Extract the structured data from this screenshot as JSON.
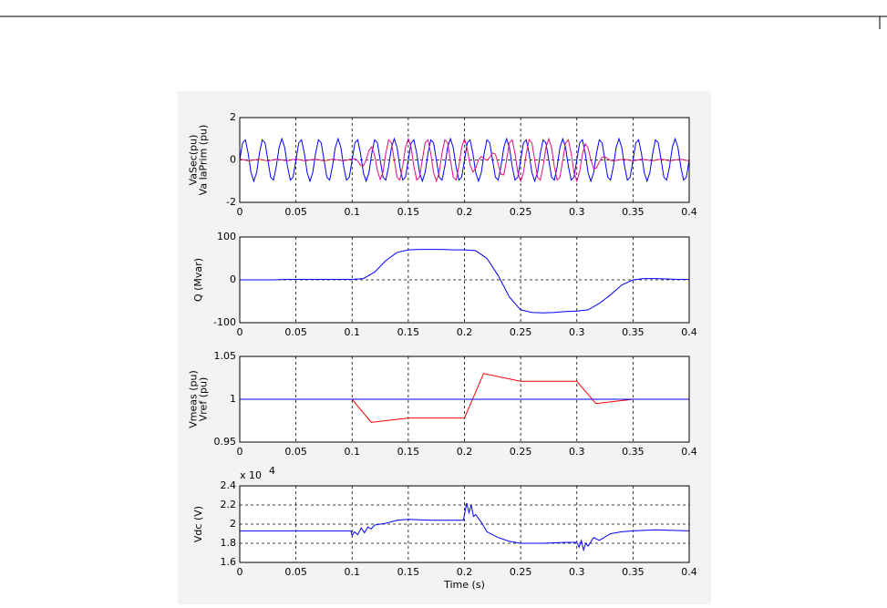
{
  "chart_data": [
    {
      "type": "line",
      "ylabel": [
        "VaSec(pu)",
        "Va IaPrim (pu)"
      ],
      "grid": true,
      "xlim": [
        0,
        0.4
      ],
      "ylim": [
        -2,
        2
      ],
      "xticks": [
        0,
        0.05,
        0.1,
        0.15,
        0.2,
        0.25,
        0.3,
        0.35,
        0.4
      ],
      "yticks": [
        -2,
        0,
        2
      ],
      "x": [
        0,
        0.0025,
        0.005,
        0.0075,
        0.01,
        0.0125,
        0.015,
        0.0175,
        0.02,
        0.0225,
        0.025,
        0.0275,
        0.03,
        0.0325,
        0.035,
        0.0375,
        0.04,
        0.0425,
        0.045,
        0.0475,
        0.05,
        0.0525,
        0.055,
        0.0575,
        0.06,
        0.0625,
        0.065,
        0.0675,
        0.07,
        0.0725,
        0.075,
        0.0775,
        0.08,
        0.0825,
        0.085,
        0.0875,
        0.09,
        0.0925,
        0.095,
        0.0975,
        0.1,
        0.1025,
        0.105,
        0.1075,
        0.11,
        0.1125,
        0.115,
        0.1175,
        0.12,
        0.1225,
        0.125,
        0.1275,
        0.13,
        0.1325,
        0.135,
        0.1375,
        0.14,
        0.1425,
        0.145,
        0.1475,
        0.15,
        0.1525,
        0.155,
        0.1575,
        0.16,
        0.1625,
        0.165,
        0.1675,
        0.17,
        0.1725,
        0.175,
        0.1775,
        0.18,
        0.1825,
        0.185,
        0.1875,
        0.19,
        0.1925,
        0.195,
        0.1975,
        0.2,
        0.2025,
        0.205,
        0.2075,
        0.21,
        0.2125,
        0.215,
        0.2175,
        0.22,
        0.2225,
        0.225,
        0.2275,
        0.23,
        0.2325,
        0.235,
        0.2375,
        0.24,
        0.2425,
        0.245,
        0.2475,
        0.25,
        0.2525,
        0.255,
        0.2575,
        0.26,
        0.2625,
        0.265,
        0.2675,
        0.27,
        0.2725,
        0.275,
        0.2775,
        0.28,
        0.2825,
        0.285,
        0.2875,
        0.29,
        0.2925,
        0.295,
        0.2975,
        0.3,
        0.3025,
        0.305,
        0.3075,
        0.31,
        0.3125,
        0.315,
        0.3175,
        0.32,
        0.3225,
        0.325,
        0.3275,
        0.33,
        0.3325,
        0.335,
        0.3375,
        0.34,
        0.3425,
        0.345,
        0.3475,
        0.35,
        0.3525,
        0.355,
        0.3575,
        0.36,
        0.3625,
        0.365,
        0.3675,
        0.37,
        0.3725,
        0.375,
        0.3775,
        0.38,
        0.3825,
        0.385,
        0.3875,
        0.39,
        0.3925,
        0.395,
        0.3975,
        0.4
      ],
      "series": [
        {
          "color": "#0000ff",
          "values": [
            0,
            0.81,
            0.95,
            0.31,
            -0.59,
            -1,
            -0.59,
            0.31,
            0.95,
            0.81,
            0,
            -0.81,
            -0.95,
            -0.31,
            0.59,
            1,
            0.59,
            -0.31,
            -0.95,
            -0.81,
            0,
            0.81,
            0.95,
            0.31,
            -0.59,
            -1,
            -0.59,
            0.31,
            0.95,
            0.81,
            0,
            -0.81,
            -0.95,
            -0.31,
            0.59,
            1,
            0.59,
            -0.31,
            -0.95,
            -0.81,
            0,
            0.81,
            0.95,
            0.31,
            -0.59,
            -1,
            -0.59,
            0.31,
            0.95,
            0.81,
            0,
            -0.81,
            -0.95,
            -0.31,
            0.59,
            1,
            0.59,
            -0.31,
            -0.95,
            -0.81,
            0,
            0.81,
            0.95,
            0.31,
            -0.59,
            -1,
            -0.59,
            0.31,
            0.95,
            0.81,
            0,
            -0.81,
            -0.95,
            -0.31,
            0.59,
            1,
            0.59,
            -0.31,
            -0.95,
            -0.81,
            0,
            0.81,
            0.95,
            0.31,
            -0.59,
            -1,
            -0.59,
            0.31,
            0.95,
            0.81,
            0,
            -0.81,
            -0.95,
            -0.31,
            0.59,
            1,
            0.59,
            -0.31,
            -0.95,
            -0.81,
            0,
            0.81,
            0.95,
            0.31,
            -0.59,
            -1,
            -0.59,
            0.31,
            0.95,
            0.81,
            0,
            -0.81,
            -0.95,
            -0.31,
            0.59,
            1,
            0.59,
            -0.31,
            -0.95,
            -0.81,
            0,
            0.81,
            0.95,
            0.31,
            -0.59,
            -1,
            -0.59,
            0.31,
            0.95,
            0.81,
            0,
            -0.81,
            -0.95,
            -0.31,
            0.59,
            1,
            0.59,
            -0.31,
            -0.95,
            -0.81,
            0,
            0.81,
            0.95,
            0.31,
            -0.59,
            -1,
            -0.59,
            0.31,
            0.95,
            0.81,
            0,
            -0.81,
            -0.95,
            -0.31,
            0.59,
            1,
            0.59,
            -0.31,
            -0.95,
            -0.81,
            0
          ]
        },
        {
          "color": "#e0107a",
          "values": [
            0.03,
            0.02,
            -0.01,
            -0.03,
            -0.02,
            0,
            0.02,
            0.03,
            0.01,
            -0.02,
            -0.03,
            -0.02,
            0.01,
            0.03,
            0.02,
            0,
            -0.02,
            -0.03,
            -0.01,
            0.02,
            0.03,
            0.02,
            -0.01,
            -0.03,
            -0.02,
            0,
            0.02,
            0.03,
            0.01,
            -0.02,
            -0.03,
            -0.02,
            0.01,
            0.03,
            0.02,
            0,
            -0.02,
            -0.03,
            -0.01,
            0.02,
            0.05,
            0.06,
            -0.05,
            -0.24,
            -0.28,
            0,
            0.45,
            0.62,
            0.23,
            -0.5,
            -0.92,
            -0.57,
            0.31,
            0.95,
            0.81,
            0,
            -0.81,
            -0.95,
            -0.31,
            0.59,
            1,
            0.59,
            -0.31,
            -0.95,
            -0.81,
            0,
            0.81,
            0.95,
            0.31,
            -0.59,
            -1,
            -0.59,
            0.31,
            0.95,
            0.81,
            0,
            -0.81,
            -0.95,
            -0.31,
            0.59,
            1,
            0.51,
            -0.23,
            -0.57,
            -0.38,
            0,
            0.16,
            0.07,
            -0.02,
            0.12,
            0.33,
            0.28,
            -0.19,
            -0.69,
            -0.7,
            0,
            0.81,
            0.95,
            0.31,
            -0.59,
            -1,
            -0.59,
            0.31,
            0.95,
            0.81,
            0,
            -0.81,
            -0.95,
            -0.31,
            0.59,
            1,
            0.59,
            -0.31,
            -0.95,
            -0.81,
            0,
            0.81,
            0.95,
            0.31,
            -0.59,
            -1,
            -0.56,
            0.27,
            0.76,
            0.57,
            0,
            -0.41,
            -0.38,
            -0.09,
            0.13,
            0.15,
            0.06,
            -0.02,
            -0.03,
            -0.02,
            0,
            0.02,
            0.03,
            0.01,
            -0.02,
            -0.03,
            -0.02,
            0.01,
            0.03,
            0.02,
            0,
            -0.02,
            -0.03,
            -0.01,
            0.02,
            0.03,
            0.02,
            -0.01,
            -0.03,
            -0.02,
            0,
            0.02,
            0.03,
            0.01,
            -0.02,
            -0.03
          ]
        }
      ]
    },
    {
      "type": "line",
      "ylabel": [
        "Q (Mvar)"
      ],
      "grid": true,
      "xlim": [
        0,
        0.4
      ],
      "ylim": [
        -100,
        100
      ],
      "xticks": [
        0,
        0.05,
        0.1,
        0.15,
        0.2,
        0.25,
        0.3,
        0.35,
        0.4
      ],
      "yticks": [
        -100,
        0,
        100
      ],
      "x": [
        0,
        0.01,
        0.02,
        0.03,
        0.04,
        0.05,
        0.06,
        0.07,
        0.08,
        0.09,
        0.1,
        0.11,
        0.12,
        0.13,
        0.14,
        0.15,
        0.16,
        0.17,
        0.18,
        0.19,
        0.2,
        0.21,
        0.22,
        0.23,
        0.24,
        0.25,
        0.26,
        0.27,
        0.28,
        0.29,
        0.3,
        0.31,
        0.32,
        0.33,
        0.34,
        0.35,
        0.36,
        0.37,
        0.38,
        0.39,
        0.4
      ],
      "series": [
        {
          "color": "#0000ff",
          "values": [
            0,
            0,
            0,
            0,
            1,
            1,
            1,
            1,
            1,
            1,
            1,
            3,
            18,
            45,
            64,
            70,
            71,
            71,
            71,
            70,
            70,
            68,
            50,
            10,
            -40,
            -70,
            -76,
            -77,
            -76,
            -74,
            -73,
            -70,
            -55,
            -35,
            -12,
            0,
            3,
            3,
            2,
            1,
            1
          ]
        }
      ]
    },
    {
      "type": "line",
      "ylabel": [
        "Vmeas (pu)",
        "Vref (pu)"
      ],
      "grid": true,
      "xlim": [
        0,
        0.4
      ],
      "ylim": [
        0.95,
        1.05
      ],
      "xticks": [
        0,
        0.05,
        0.1,
        0.15,
        0.2,
        0.25,
        0.3,
        0.35,
        0.4
      ],
      "yticks": [
        0.95,
        1,
        1.05
      ],
      "x": [
        0,
        0.1,
        0.117,
        0.15,
        0.2,
        0.217,
        0.25,
        0.3,
        0.317,
        0.35,
        0.4
      ],
      "series": [
        {
          "color": "#ff0000",
          "values": [
            1,
            1,
            0.973,
            0.978,
            0.978,
            1.03,
            1.021,
            1.021,
            0.995,
            1,
            1
          ]
        },
        {
          "color": "#0000ff",
          "values": [
            1,
            1,
            1,
            1,
            1,
            1,
            1,
            1,
            1,
            1,
            1
          ]
        }
      ]
    },
    {
      "type": "line",
      "ylabel": [
        "Vdc (V)"
      ],
      "xlabel": "Time (s)",
      "multiplier": [
        "x 10",
        "4"
      ],
      "grid": true,
      "xlim": [
        0,
        0.4
      ],
      "ylim": [
        1.6,
        2.4
      ],
      "xticks": [
        0,
        0.05,
        0.1,
        0.15,
        0.2,
        0.25,
        0.3,
        0.35,
        0.4
      ],
      "yticks": [
        1.6,
        1.8,
        2,
        2.2,
        2.4
      ],
      "x": [
        0,
        0.05,
        0.099,
        0.1,
        0.102,
        0.105,
        0.108,
        0.111,
        0.114,
        0.117,
        0.12,
        0.13,
        0.14,
        0.15,
        0.17,
        0.19,
        0.199,
        0.2,
        0.202,
        0.204,
        0.206,
        0.208,
        0.21,
        0.215,
        0.22,
        0.23,
        0.24,
        0.25,
        0.27,
        0.29,
        0.3,
        0.302,
        0.304,
        0.306,
        0.308,
        0.31,
        0.315,
        0.32,
        0.33,
        0.34,
        0.35,
        0.37,
        0.4
      ],
      "series": [
        {
          "color": "#0000ff",
          "values": [
            1.93,
            1.93,
            1.93,
            1.88,
            1.92,
            1.89,
            1.96,
            1.91,
            1.97,
            1.95,
            1.99,
            2.01,
            2.04,
            2.05,
            2.04,
            2.04,
            2.04,
            2.1,
            2.22,
            2.12,
            2.2,
            2.08,
            2.1,
            2.02,
            1.92,
            1.86,
            1.82,
            1.8,
            1.8,
            1.81,
            1.81,
            1.76,
            1.83,
            1.73,
            1.8,
            1.77,
            1.86,
            1.83,
            1.9,
            1.92,
            1.93,
            1.94,
            1.93
          ]
        }
      ]
    }
  ]
}
